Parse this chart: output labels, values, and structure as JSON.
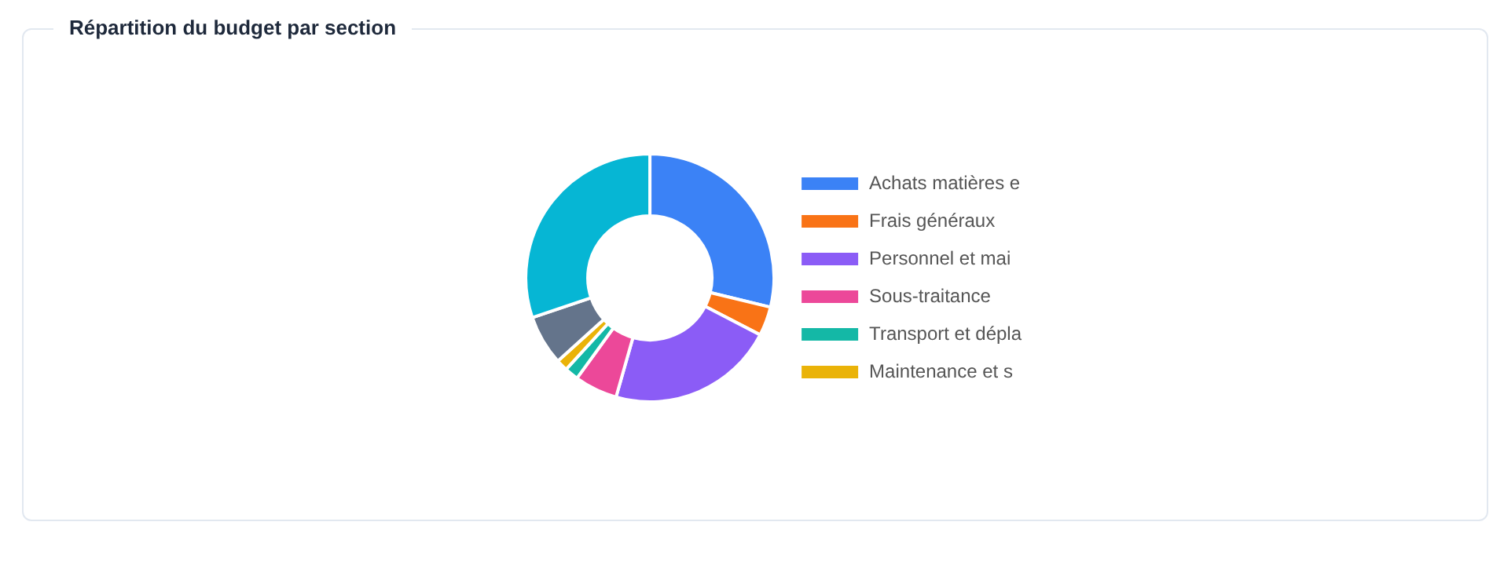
{
  "chart_data": {
    "type": "donut",
    "title": "Répartition du budget par section",
    "categories": [
      "Achats matières e",
      "Frais généraux",
      "Personnel et mai",
      "Sous-traitance",
      "Transport et dépla",
      "Maintenance et s",
      null,
      null
    ],
    "values": [
      28.8,
      3.8,
      21.8,
      5.6,
      1.8,
      1.5,
      6.5,
      30.2
    ],
    "colors": [
      "#3b82f6",
      "#f97316",
      "#8b5cf6",
      "#ec4899",
      "#14b8a6",
      "#eab308",
      "#64748b",
      "#06b6d4"
    ],
    "legend": "right"
  }
}
